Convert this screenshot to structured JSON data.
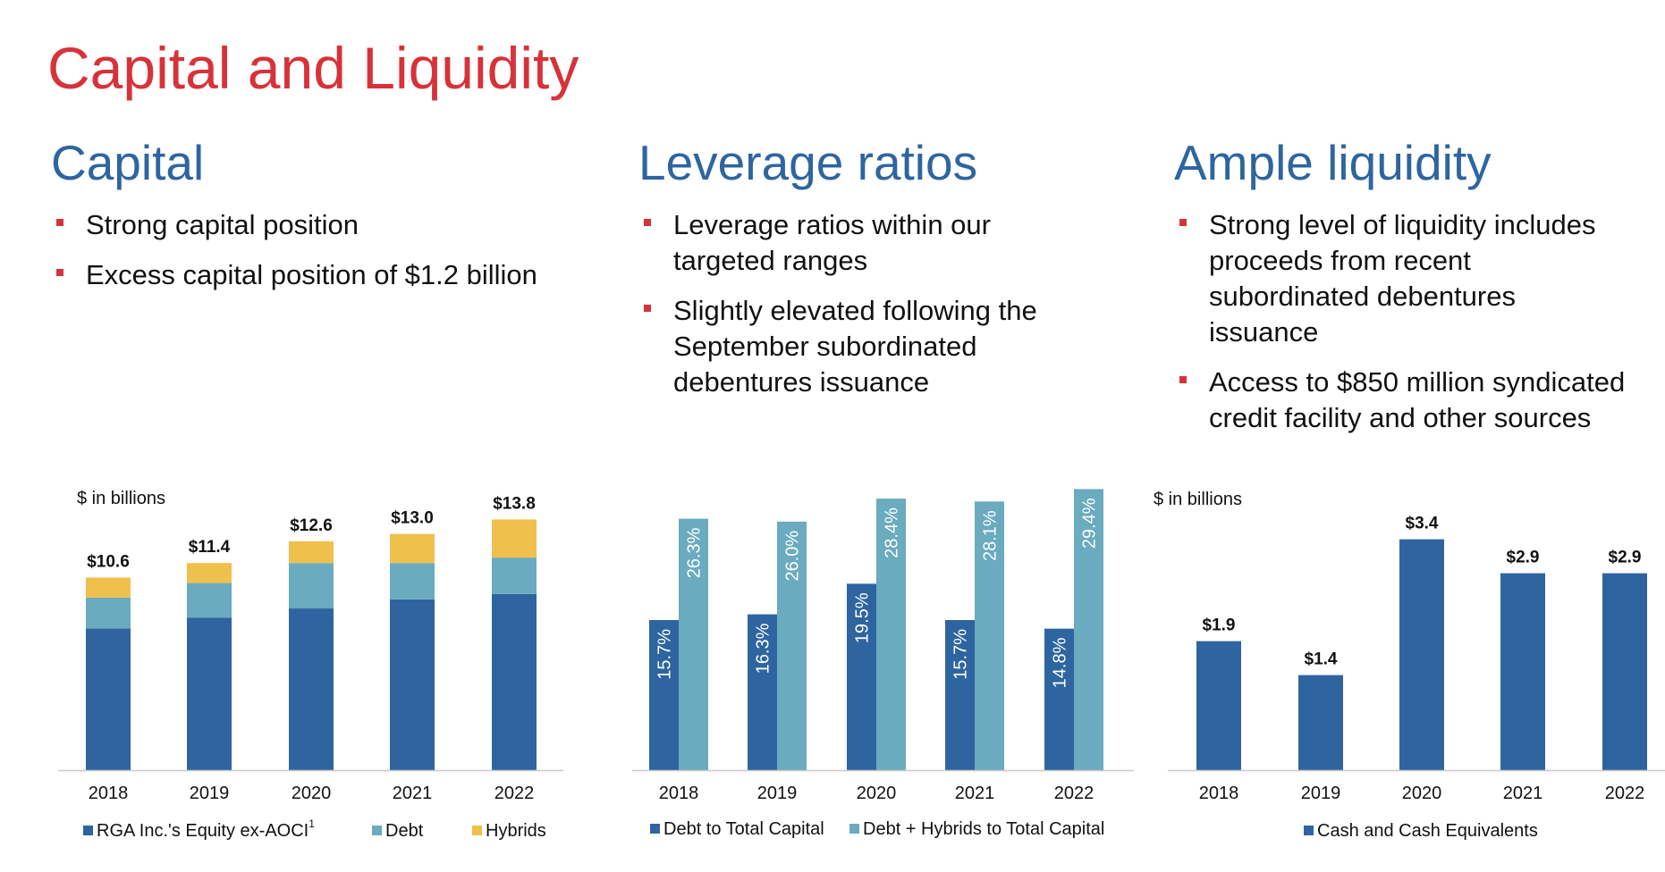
{
  "title": "Capital and Liquidity",
  "sections": [
    {
      "heading": "Capital",
      "bullets": [
        [
          "Strong capital position"
        ],
        [
          "Excess capital position of $1.2 billion"
        ]
      ]
    },
    {
      "heading": "Leverage ratios",
      "bullets": [
        [
          "Leverage ratios within our",
          "targeted ranges"
        ],
        [
          "Slightly elevated following the",
          "September subordinated",
          "debentures issuance"
        ]
      ]
    },
    {
      "heading": "Ample liquidity",
      "bullets": [
        [
          "Strong level of liquidity includes",
          "proceeds from recent",
          "subordinated debentures",
          "issuance"
        ],
        [
          "Access to $850 million syndicated",
          "credit facility and other sources"
        ]
      ]
    }
  ],
  "chart_data": [
    {
      "type": "stacked_bar",
      "subtitle": "$ in billions",
      "categories": [
        "2018",
        "2019",
        "2020",
        "2021",
        "2022"
      ],
      "series": [
        {
          "name": "RGA Inc.'s Equity ex-AOCI",
          "footnote_mark": "1",
          "color": "#2e65a0",
          "values": [
            7.8,
            8.4,
            8.9,
            9.4,
            9.7
          ]
        },
        {
          "name": "Debt",
          "color": "#6aabbf",
          "values": [
            1.7,
            1.9,
            2.5,
            2.0,
            2.0
          ]
        },
        {
          "name": "Hybrids",
          "color": "#f0c04d",
          "values": [
            1.1,
            1.1,
            1.2,
            1.6,
            2.1
          ]
        }
      ],
      "total_labels": [
        "$10.6",
        "$11.4",
        "$12.6",
        "$13.0",
        "$13.8"
      ],
      "ylim": [
        0,
        15
      ]
    },
    {
      "type": "grouped_bar",
      "categories": [
        "2018",
        "2019",
        "2020",
        "2021",
        "2022"
      ],
      "series": [
        {
          "name": "Debt to Total Capital",
          "color": "#2e65a0",
          "values": [
            15.7,
            16.3,
            19.5,
            15.7,
            14.8
          ],
          "value_labels": [
            "15.7%",
            "16.3%",
            "19.5%",
            "15.7%",
            "14.8%"
          ]
        },
        {
          "name": "Debt + Hybrids to Total Capital",
          "color": "#6aabbf",
          "values": [
            26.3,
            26.0,
            28.4,
            28.1,
            29.4
          ],
          "value_labels": [
            "26.3%",
            "26.0%",
            "28.4%",
            "28.1%",
            "29.4%"
          ]
        }
      ],
      "ylim": [
        0,
        30
      ]
    },
    {
      "type": "bar",
      "subtitle": "$ in billions",
      "categories": [
        "2018",
        "2019",
        "2020",
        "2021",
        "2022"
      ],
      "series": [
        {
          "name": "Cash and Cash Equivalents",
          "color": "#2e65a0",
          "values": [
            1.9,
            1.4,
            3.4,
            2.9,
            2.9
          ],
          "value_labels": [
            "$1.9",
            "$1.4",
            "$3.4",
            "$2.9",
            "$2.9"
          ]
        }
      ],
      "ylim": [
        0,
        3.5
      ]
    }
  ]
}
